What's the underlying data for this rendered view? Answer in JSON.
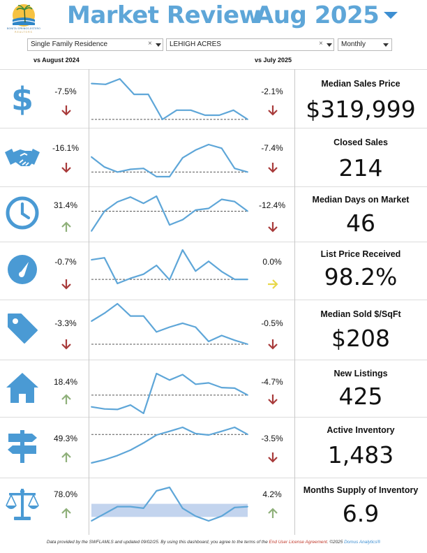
{
  "header": {
    "title": "Market Review",
    "date": "Aug 2025",
    "logo_text": "BONITA SPRINGS-ESTERO",
    "logo_subtext": "REALTORS"
  },
  "filters": {
    "property_type": "Single Family Residence",
    "area": "LEHIGH ACRES",
    "period": "Monthly",
    "clear_glyph": "×"
  },
  "columns": {
    "yoy_header": "vs August 2024",
    "mom_header": "vs July 2025"
  },
  "colors": {
    "accent": "#5ea6d8",
    "icon_blue": "#4a9ad4",
    "down_arrow": "#a83a3a",
    "up_arrow": "#8fb07a",
    "neutral_arrow": "#e8d84a",
    "band": "#c3d4ee"
  },
  "metrics": [
    {
      "icon": "dollar-icon",
      "label": "Median Sales Price",
      "value": "$319,999",
      "yoy_change": "-7.5%",
      "yoy_dir": "down",
      "mom_change": "-2.1%",
      "mom_dir": "down"
    },
    {
      "icon": "handshake-icon",
      "label": "Closed Sales",
      "value": "214",
      "yoy_change": "-16.1%",
      "yoy_dir": "down",
      "mom_change": "-7.4%",
      "mom_dir": "down"
    },
    {
      "icon": "clock-icon",
      "label": "Median Days on Market",
      "value": "46",
      "yoy_change": "31.4%",
      "yoy_dir": "up",
      "mom_change": "-12.4%",
      "mom_dir": "down"
    },
    {
      "icon": "gauge-icon",
      "label": "List Price Received",
      "value": "98.2%",
      "yoy_change": "-0.7%",
      "yoy_dir": "down",
      "mom_change": "0.0%",
      "mom_dir": "flat"
    },
    {
      "icon": "price-tag-icon",
      "label": "Median Sold $/SqFt",
      "value": "$208",
      "yoy_change": "-3.3%",
      "yoy_dir": "down",
      "mom_change": "-0.5%",
      "mom_dir": "down"
    },
    {
      "icon": "house-icon",
      "label": "New Listings",
      "value": "425",
      "yoy_change": "18.4%",
      "yoy_dir": "up",
      "mom_change": "-4.7%",
      "mom_dir": "down"
    },
    {
      "icon": "signpost-icon",
      "label": "Active Inventory",
      "value": "1,483",
      "yoy_change": "49.3%",
      "yoy_dir": "up",
      "mom_change": "-3.5%",
      "mom_dir": "down"
    },
    {
      "icon": "scale-icon",
      "label": "Months Supply of Inventory",
      "value": "6.9",
      "yoy_change": "78.0%",
      "yoy_dir": "up",
      "mom_change": "4.2%",
      "mom_dir": "up"
    }
  ],
  "chart_data": [
    {
      "type": "line",
      "metric": "Median Sales Price",
      "values": [
        0.86,
        0.84,
        0.97,
        0.6,
        0.6,
        0.0,
        0.22,
        0.22,
        0.1,
        0.1,
        0.22,
        0.0
      ],
      "reference": 0.0,
      "band": null
    },
    {
      "type": "line",
      "metric": "Closed Sales",
      "values": [
        0.33,
        0.11,
        0.0,
        0.06,
        0.08,
        -0.1,
        -0.1,
        0.31,
        0.48,
        0.6,
        0.52,
        0.08,
        0.0
      ],
      "reference": 0.0,
      "band": null
    },
    {
      "type": "line",
      "metric": "Median Days on Market",
      "values": [
        -0.7,
        0.0,
        0.33,
        0.5,
        0.28,
        0.53,
        -0.48,
        -0.3,
        0.04,
        0.1,
        0.42,
        0.34,
        0.0
      ],
      "reference": 0.0,
      "band": null
    },
    {
      "type": "line",
      "metric": "List Price Received",
      "values": [
        0.95,
        1.05,
        -0.2,
        0.05,
        0.25,
        0.68,
        -0.02,
        1.43,
        0.4,
        0.88,
        0.38,
        0.0,
        0.0
      ],
      "reference": 0.0,
      "band": null
    },
    {
      "type": "line",
      "metric": "Median Sold $/SqFt",
      "values": [
        0.58,
        0.78,
        1.02,
        0.71,
        0.71,
        0.31,
        0.43,
        0.53,
        0.43,
        0.07,
        0.22,
        0.1,
        0.0
      ],
      "reference": 0.0,
      "band": null
    },
    {
      "type": "line",
      "metric": "New Listings",
      "values": [
        -0.45,
        -0.53,
        -0.55,
        -0.38,
        -0.7,
        0.83,
        0.58,
        0.79,
        0.42,
        0.47,
        0.29,
        0.27,
        0.0
      ],
      "reference": 0.0,
      "band": null
    },
    {
      "type": "line",
      "metric": "Active Inventory",
      "values": [
        -1.0,
        -0.89,
        -0.74,
        -0.55,
        -0.3,
        -0.02,
        0.11,
        0.25,
        0.03,
        -0.02,
        0.11,
        0.25,
        0.0
      ],
      "reference": 0.0,
      "band": null
    },
    {
      "type": "line",
      "metric": "Months Supply of Inventory",
      "values": [
        -0.9,
        -0.45,
        0.0,
        0.0,
        -0.1,
        1.0,
        1.22,
        -0.1,
        -0.6,
        -0.9,
        -0.6,
        -0.05,
        0.0
      ],
      "reference": null,
      "band": [
        -0.65,
        0.18
      ]
    }
  ],
  "footer": {
    "prefix": "Data provided by the SWFLAMLS and updated 09/02/25.  By using this dashboard, you agree to the terms of the ",
    "link": "End User License Agreement",
    "suffix": ".  ©2025 ",
    "brand": "Domus Analytics®"
  }
}
